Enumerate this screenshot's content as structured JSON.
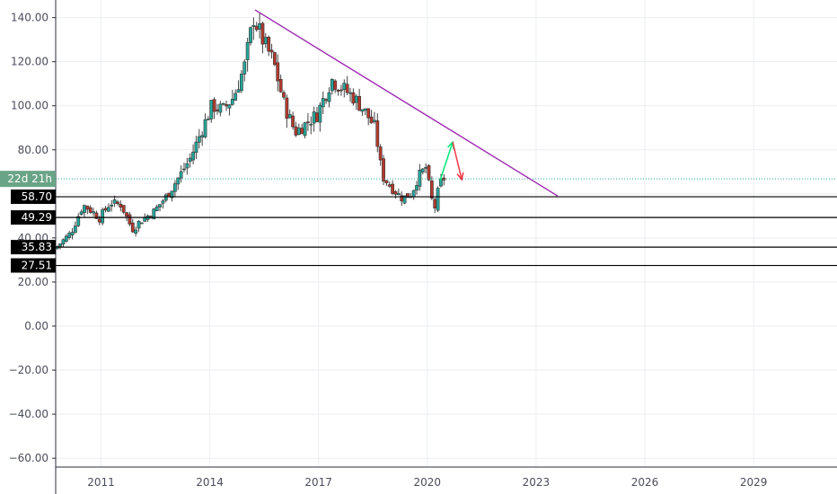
{
  "chart_data": {
    "type": "candlestick",
    "title": "",
    "xlabel": "",
    "ylabel": "",
    "x_range": [
      2009.75,
      2031.3
    ],
    "ylim": [
      -64,
      148
    ],
    "grid": true,
    "y_ticks": [
      140,
      120,
      100,
      80,
      60,
      40,
      20,
      0,
      -20,
      -40,
      -60
    ],
    "y_tick_labels": [
      "140.00",
      "120.00",
      "100.00",
      "80.00",
      "60.00",
      "40.00",
      "20.00",
      "0.00",
      "−20.00",
      "−40.00",
      "−60.00"
    ],
    "x_ticks": [
      2011,
      2014,
      2017,
      2020,
      2023,
      2026,
      2029
    ],
    "x_tick_labels": [
      "2011",
      "2014",
      "2017",
      "2020",
      "2023",
      "2026",
      "2029"
    ],
    "countdown_label": "22d 21h",
    "countdown_price": 66.8,
    "horizontal_levels": [
      {
        "value": 58.7,
        "label": "58.70"
      },
      {
        "value": 49.29,
        "label": "49.29"
      },
      {
        "value": 35.83,
        "label": "35.83"
      },
      {
        "value": 27.51,
        "label": "27.51"
      }
    ],
    "trendline": {
      "x0": 2015.25,
      "y0": 143.5,
      "x1": 2023.6,
      "y1": 59.0
    },
    "arrows": [
      {
        "direction": "up",
        "x0": 2020.35,
        "y0": 66.0,
        "x1": 2020.7,
        "y1": 83.5
      },
      {
        "direction": "down",
        "x0": 2020.7,
        "y0": 83.5,
        "x1": 2020.95,
        "y1": 66.5
      }
    ],
    "price_path": [
      [
        2009.75,
        35.0
      ],
      [
        2010.2,
        42.0
      ],
      [
        2010.55,
        55.0
      ],
      [
        2010.8,
        52.0
      ],
      [
        2011.0,
        49.0
      ],
      [
        2011.3,
        56.0
      ],
      [
        2011.6,
        55.0
      ],
      [
        2011.9,
        44.0
      ],
      [
        2012.15,
        48.0
      ],
      [
        2012.5,
        52.0
      ],
      [
        2012.9,
        60.0
      ],
      [
        2013.2,
        68.0
      ],
      [
        2013.5,
        76.0
      ],
      [
        2013.8,
        88.0
      ],
      [
        2014.1,
        100.0
      ],
      [
        2014.4,
        98.0
      ],
      [
        2014.7,
        104.0
      ],
      [
        2015.0,
        118.0
      ],
      [
        2015.25,
        140.0
      ],
      [
        2015.55,
        128.0
      ],
      [
        2015.8,
        120.0
      ],
      [
        2016.1,
        100.0
      ],
      [
        2016.4,
        88.0
      ],
      [
        2016.7,
        92.0
      ],
      [
        2017.0,
        96.0
      ],
      [
        2017.4,
        112.0
      ],
      [
        2017.7,
        108.0
      ],
      [
        2018.0,
        104.0
      ],
      [
        2018.3,
        98.0
      ],
      [
        2018.6,
        90.0
      ],
      [
        2018.8,
        68.0
      ],
      [
        2019.1,
        62.0
      ],
      [
        2019.35,
        58.0
      ],
      [
        2019.6,
        60.0
      ],
      [
        2019.8,
        68.0
      ],
      [
        2020.0,
        72.0
      ],
      [
        2020.15,
        58.0
      ],
      [
        2020.25,
        54.0
      ],
      [
        2020.35,
        62.0
      ],
      [
        2020.45,
        67.0
      ]
    ]
  }
}
